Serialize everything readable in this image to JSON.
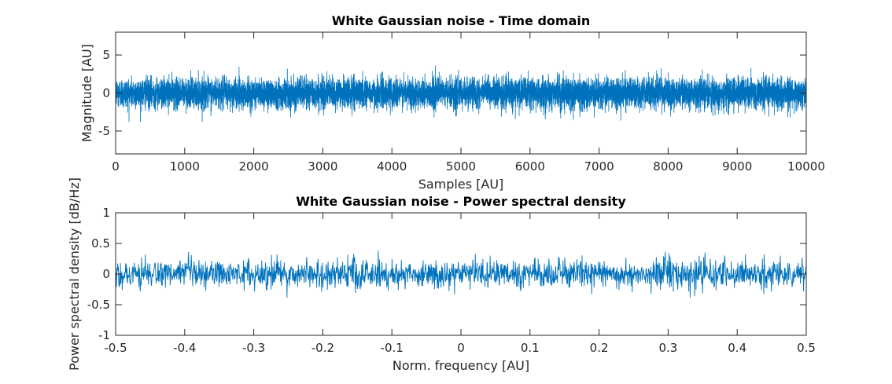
{
  "chart_data": [
    {
      "type": "line",
      "title": "White Gaussian noise - Time domain",
      "xlabel": "Samples [AU]",
      "ylabel": "Magnitude [AU]",
      "xlim": [
        0,
        10000
      ],
      "ylim": [
        -8,
        8
      ],
      "xticks": [
        0,
        1000,
        2000,
        3000,
        4000,
        5000,
        6000,
        7000,
        8000,
        9000,
        10000
      ],
      "xtick_labels": [
        "0",
        "1000",
        "2000",
        "3000",
        "4000",
        "5000",
        "6000",
        "7000",
        "8000",
        "9000",
        "10000"
      ],
      "yticks": [
        -5,
        0,
        5
      ],
      "ytick_labels": [
        "-5",
        "0",
        "5"
      ],
      "grid": false,
      "color": "#0072BD",
      "series": [
        {
          "num_samples": 10000,
          "mean": 0,
          "std": 1,
          "x_range": [
            0,
            10000
          ],
          "min": -3.8,
          "max": 3.8
        }
      ]
    },
    {
      "type": "line",
      "title": "White Gaussian noise - Power spectral density",
      "xlabel": "Norm. frequency [AU]",
      "ylabel": "Power spectral density [dB/Hz]",
      "xlim": [
        -0.5,
        0.5
      ],
      "ylim": [
        -1,
        1
      ],
      "xticks": [
        -0.5,
        -0.4,
        -0.3,
        -0.2,
        -0.1,
        0,
        0.1,
        0.2,
        0.3,
        0.4,
        0.5
      ],
      "xtick_labels": [
        "-0.5",
        "-0.4",
        "-0.3",
        "-0.2",
        "-0.1",
        "0",
        "0.1",
        "0.2",
        "0.3",
        "0.4",
        "0.5"
      ],
      "yticks": [
        -1,
        -0.5,
        0,
        0.5,
        1
      ],
      "ytick_labels": [
        "-1",
        "-0.5",
        "0",
        "0.5",
        "1"
      ],
      "grid": false,
      "color": "#0072BD",
      "series": [
        {
          "num_samples": 2000,
          "mean": 0,
          "std": 0.12,
          "x_range": [
            -0.5,
            0.5
          ],
          "min": -0.5,
          "max": 0.38
        }
      ]
    }
  ]
}
